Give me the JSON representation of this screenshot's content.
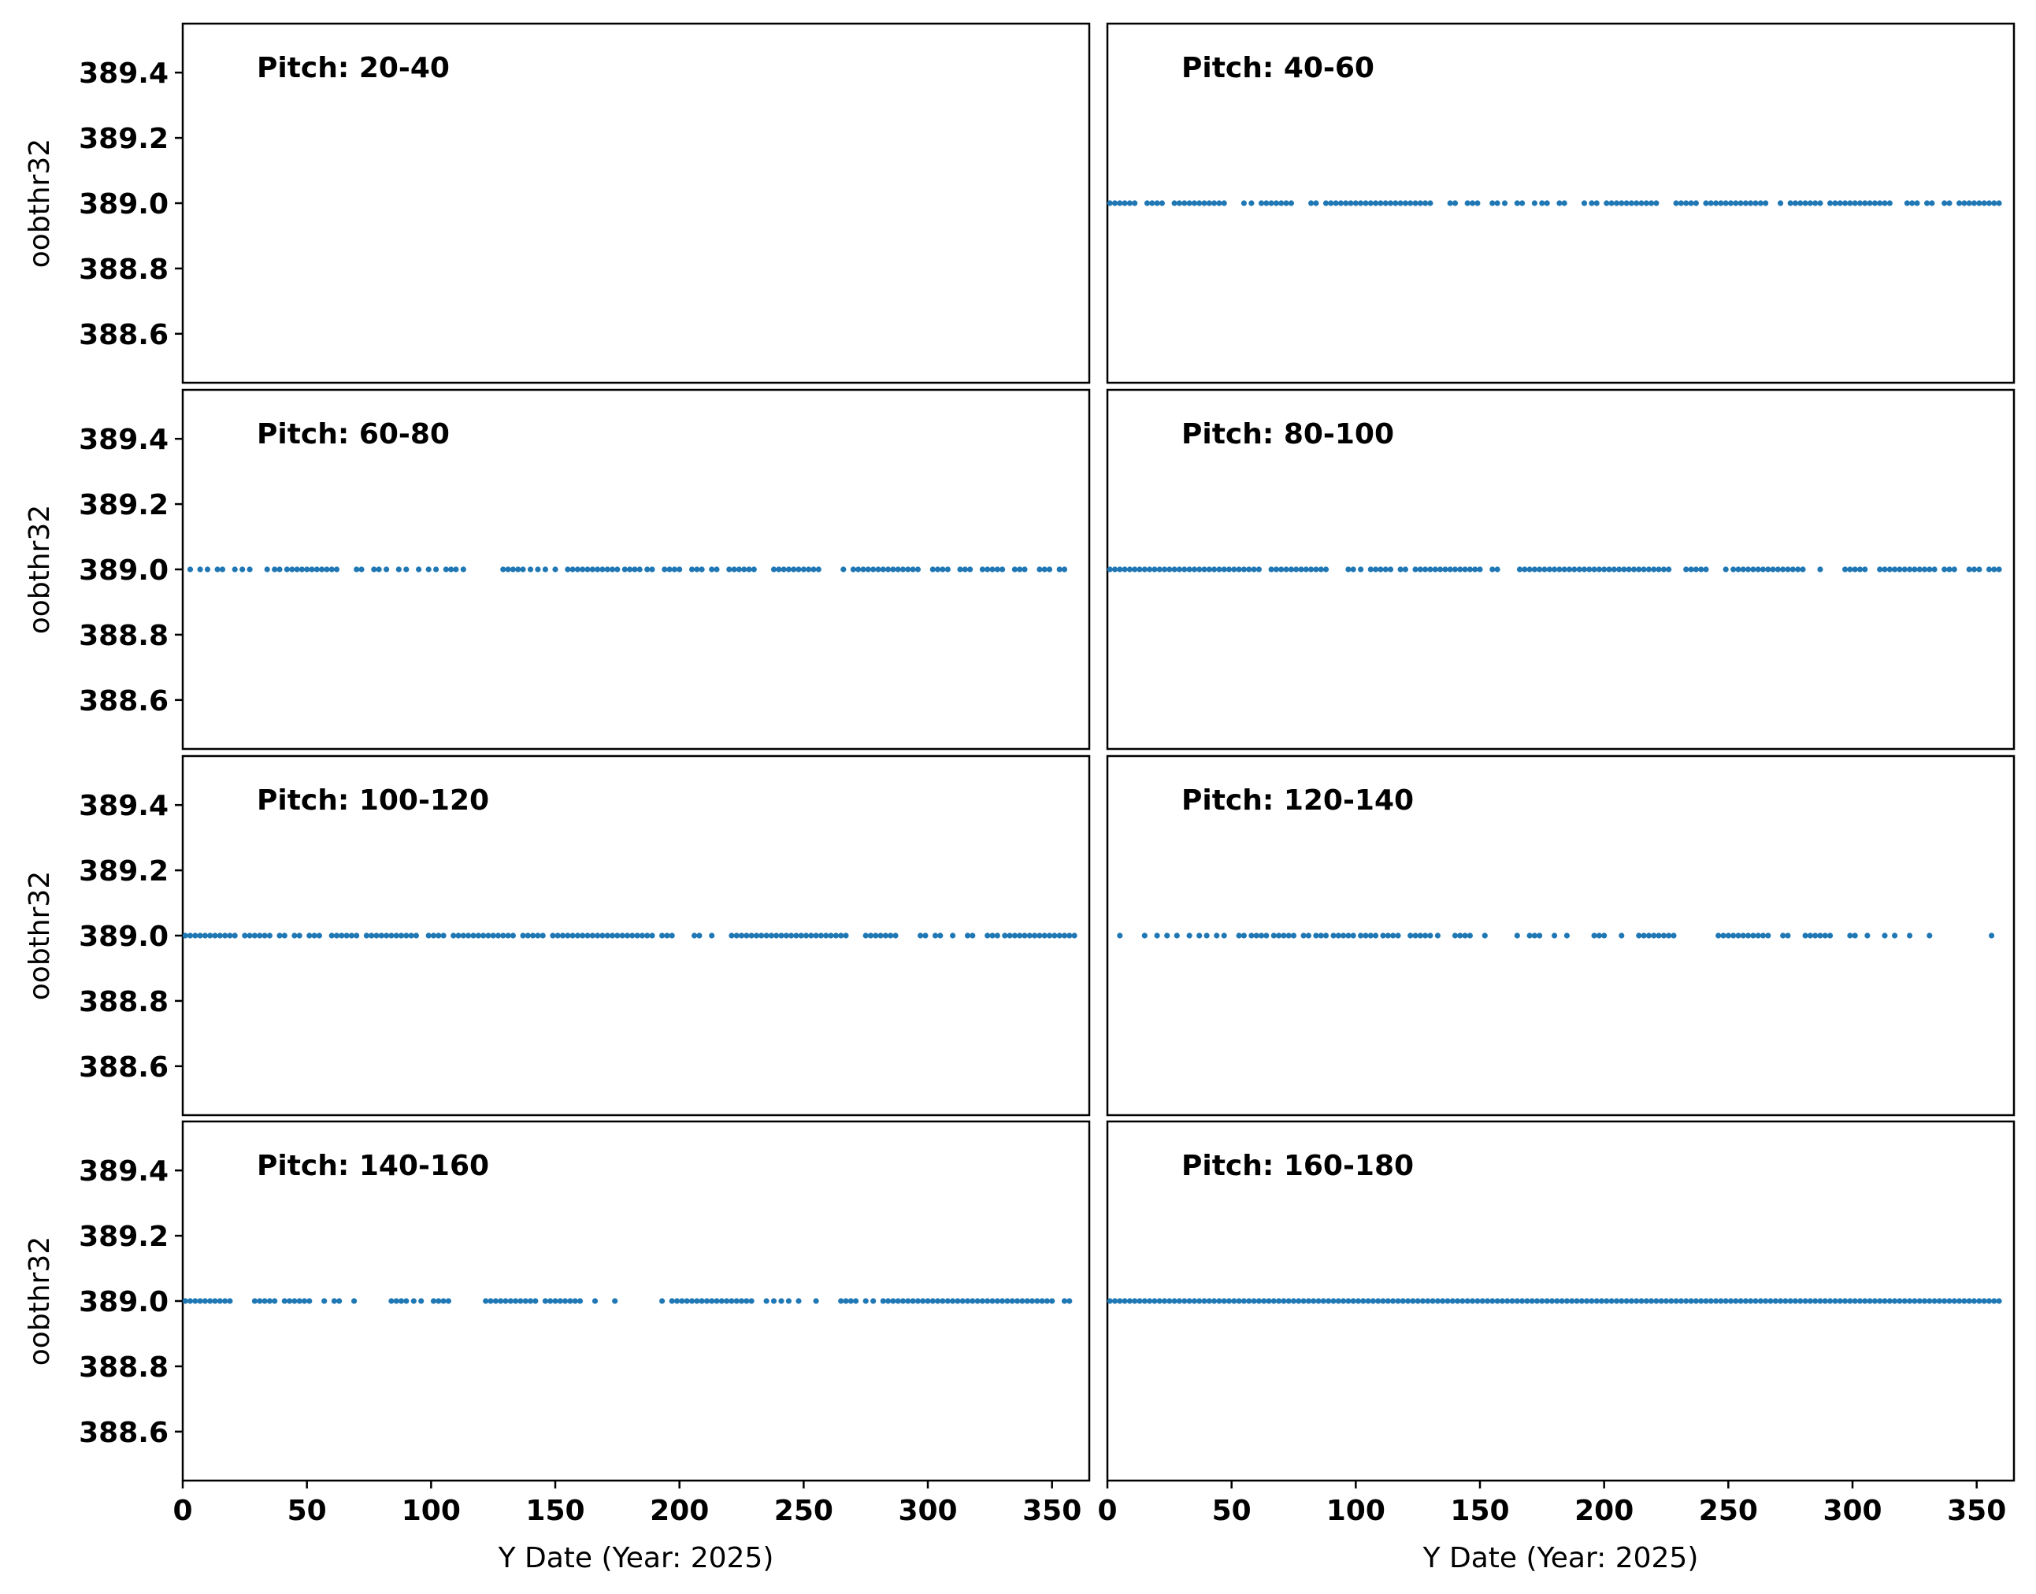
{
  "chart_data": {
    "type": "scatter",
    "layout": "4x2 grid of subplots sharing x and y axes",
    "ylabel": "oobthr32",
    "xlabel": "Y Date (Year: 2025)",
    "xlim": [
      0,
      365
    ],
    "ylim": [
      388.45,
      389.55
    ],
    "xticks": [
      0,
      50,
      100,
      150,
      200,
      250,
      300,
      350
    ],
    "yticks": [
      388.6,
      388.8,
      389.0,
      389.2,
      389.4
    ],
    "ytick_labels": [
      "388.6",
      "388.8",
      "389.0",
      "389.2",
      "389.4"
    ],
    "marker_color": "#1f77b4",
    "y_value": 389.0,
    "panels": [
      {
        "title": "Pitch: 20-40",
        "x": []
      },
      {
        "title": "Pitch: 40-60",
        "x": [
          1,
          3,
          5,
          7,
          9,
          11,
          16,
          18,
          20,
          22,
          27,
          29,
          31,
          33,
          35,
          37,
          39,
          41,
          43,
          45,
          47,
          55,
          58,
          62,
          64,
          66,
          68,
          70,
          72,
          74,
          82,
          84,
          88,
          90,
          92,
          94,
          96,
          98,
          100,
          102,
          104,
          106,
          108,
          110,
          112,
          114,
          116,
          118,
          120,
          122,
          124,
          126,
          128,
          130,
          138,
          140,
          145,
          147,
          149,
          155,
          157,
          160,
          165,
          167,
          172,
          175,
          177,
          182,
          184,
          192,
          195,
          197,
          201,
          203,
          205,
          207,
          209,
          211,
          213,
          215,
          217,
          219,
          221,
          229,
          231,
          233,
          235,
          237,
          241,
          243,
          245,
          247,
          249,
          251,
          253,
          255,
          257,
          259,
          261,
          263,
          265,
          271,
          275,
          277,
          279,
          281,
          283,
          285,
          287,
          291,
          293,
          295,
          297,
          299,
          301,
          303,
          305,
          307,
          309,
          311,
          313,
          315,
          322,
          324,
          326,
          330,
          332,
          337,
          339,
          343,
          345,
          347,
          349,
          351,
          353,
          355,
          357,
          359
        ]
      },
      {
        "title": "Pitch: 60-80",
        "x": [
          3,
          7,
          10,
          14,
          16,
          21,
          24,
          27,
          34,
          37,
          39,
          42,
          44,
          46,
          48,
          50,
          52,
          54,
          56,
          58,
          60,
          62,
          70,
          72,
          77,
          79,
          82,
          87,
          90,
          95,
          99,
          102,
          106,
          108,
          110,
          113,
          129,
          131,
          133,
          135,
          137,
          140,
          143,
          146,
          150,
          155,
          157,
          159,
          161,
          163,
          165,
          167,
          169,
          171,
          173,
          175,
          178,
          180,
          182,
          184,
          187,
          189,
          194,
          196,
          198,
          200,
          205,
          207,
          209,
          213,
          215,
          220,
          222,
          224,
          226,
          228,
          230,
          238,
          240,
          242,
          244,
          246,
          248,
          250,
          252,
          254,
          256,
          266,
          270,
          272,
          274,
          276,
          278,
          280,
          282,
          284,
          286,
          288,
          290,
          292,
          294,
          296,
          302,
          304,
          306,
          308,
          313,
          315,
          317,
          322,
          324,
          326,
          328,
          330,
          335,
          337,
          339,
          345,
          347,
          349,
          353,
          355
        ]
      },
      {
        "title": "Pitch: 80-100",
        "x": [
          1,
          3,
          5,
          7,
          9,
          11,
          13,
          15,
          17,
          19,
          21,
          23,
          25,
          27,
          29,
          31,
          33,
          35,
          37,
          39,
          41,
          43,
          45,
          47,
          49,
          51,
          53,
          55,
          57,
          59,
          61,
          66,
          68,
          70,
          72,
          74,
          76,
          78,
          80,
          82,
          84,
          86,
          88,
          97,
          99,
          102,
          106,
          108,
          110,
          112,
          114,
          118,
          120,
          124,
          126,
          128,
          130,
          132,
          134,
          136,
          138,
          140,
          142,
          144,
          146,
          148,
          150,
          155,
          157,
          166,
          168,
          170,
          172,
          174,
          176,
          178,
          180,
          182,
          184,
          186,
          188,
          190,
          192,
          194,
          196,
          198,
          200,
          202,
          204,
          206,
          208,
          210,
          212,
          214,
          216,
          218,
          220,
          222,
          224,
          226,
          233,
          235,
          237,
          239,
          241,
          249,
          252,
          254,
          256,
          258,
          260,
          262,
          264,
          266,
          268,
          270,
          272,
          274,
          276,
          278,
          280,
          287,
          297,
          299,
          301,
          303,
          305,
          311,
          313,
          315,
          317,
          319,
          321,
          323,
          325,
          327,
          329,
          331,
          333,
          337,
          339,
          341,
          347,
          349,
          351,
          355,
          357,
          359
        ]
      },
      {
        "title": "Pitch: 100-120",
        "x": [
          1,
          3,
          5,
          7,
          9,
          11,
          13,
          15,
          17,
          19,
          21,
          25,
          27,
          29,
          31,
          33,
          35,
          39,
          41,
          45,
          47,
          51,
          53,
          55,
          60,
          62,
          64,
          66,
          68,
          70,
          74,
          76,
          78,
          80,
          82,
          84,
          86,
          88,
          90,
          92,
          94,
          99,
          101,
          103,
          105,
          109,
          111,
          113,
          115,
          117,
          119,
          121,
          123,
          125,
          127,
          129,
          131,
          133,
          137,
          139,
          141,
          143,
          145,
          149,
          151,
          153,
          155,
          157,
          159,
          161,
          163,
          165,
          167,
          169,
          171,
          173,
          175,
          177,
          179,
          181,
          183,
          185,
          187,
          189,
          193,
          195,
          197,
          206,
          208,
          213,
          221,
          223,
          225,
          227,
          229,
          231,
          233,
          235,
          237,
          239,
          241,
          243,
          245,
          247,
          249,
          251,
          253,
          255,
          257,
          259,
          261,
          263,
          265,
          267,
          275,
          277,
          279,
          281,
          283,
          285,
          287,
          297,
          299,
          303,
          305,
          310,
          316,
          318,
          324,
          326,
          328,
          331,
          333,
          335,
          337,
          339,
          341,
          343,
          345,
          347,
          349,
          351,
          353,
          355,
          357,
          359
        ]
      },
      {
        "title": "Pitch: 120-140",
        "x": [
          5,
          15,
          20,
          24,
          28,
          33,
          37,
          40,
          44,
          47,
          53,
          55,
          58,
          60,
          62,
          64,
          67,
          69,
          71,
          73,
          75,
          79,
          81,
          84,
          86,
          88,
          91,
          93,
          95,
          97,
          99,
          102,
          104,
          106,
          108,
          111,
          113,
          115,
          117,
          122,
          124,
          126,
          128,
          130,
          133,
          140,
          142,
          144,
          146,
          152,
          165,
          170,
          172,
          174,
          180,
          185,
          196,
          198,
          200,
          207,
          214,
          216,
          218,
          220,
          222,
          224,
          226,
          228,
          246,
          248,
          250,
          252,
          254,
          256,
          258,
          260,
          262,
          264,
          266,
          272,
          274,
          281,
          283,
          285,
          287,
          289,
          291,
          299,
          301,
          306,
          313,
          317,
          323,
          331,
          356
        ]
      },
      {
        "title": "Pitch: 140-160",
        "x": [
          1,
          3,
          5,
          7,
          9,
          11,
          13,
          15,
          17,
          19,
          29,
          31,
          33,
          35,
          37,
          41,
          43,
          45,
          47,
          49,
          51,
          57,
          61,
          63,
          69,
          84,
          86,
          88,
          90,
          93,
          96,
          101,
          103,
          105,
          107,
          122,
          124,
          126,
          128,
          130,
          132,
          134,
          136,
          138,
          140,
          142,
          146,
          148,
          150,
          152,
          154,
          156,
          158,
          160,
          166,
          174,
          193,
          197,
          199,
          201,
          203,
          205,
          207,
          209,
          211,
          213,
          215,
          217,
          219,
          221,
          223,
          225,
          227,
          229,
          235,
          238,
          241,
          244,
          248,
          255,
          265,
          267,
          269,
          271,
          275,
          278,
          282,
          284,
          286,
          288,
          290,
          292,
          294,
          296,
          298,
          300,
          302,
          304,
          306,
          308,
          310,
          312,
          314,
          316,
          318,
          320,
          322,
          324,
          326,
          328,
          330,
          332,
          334,
          336,
          338,
          340,
          342,
          344,
          346,
          348,
          350,
          355,
          357
        ]
      },
      {
        "title": "Pitch: 160-180",
        "x": [
          1,
          3,
          5,
          7,
          9,
          11,
          13,
          15,
          17,
          19,
          21,
          23,
          25,
          27,
          29,
          31,
          33,
          35,
          37,
          39,
          41,
          43,
          45,
          47,
          49,
          51,
          53,
          55,
          57,
          59,
          61,
          63,
          65,
          67,
          69,
          71,
          73,
          75,
          77,
          79,
          81,
          83,
          85,
          87,
          89,
          91,
          93,
          95,
          97,
          99,
          101,
          103,
          105,
          107,
          109,
          111,
          113,
          115,
          117,
          119,
          121,
          123,
          125,
          127,
          129,
          131,
          133,
          135,
          137,
          139,
          141,
          143,
          145,
          147,
          149,
          151,
          153,
          155,
          157,
          159,
          161,
          163,
          165,
          167,
          169,
          171,
          173,
          175,
          177,
          179,
          181,
          183,
          185,
          187,
          189,
          191,
          193,
          195,
          197,
          199,
          201,
          203,
          205,
          207,
          209,
          211,
          213,
          215,
          217,
          219,
          221,
          223,
          225,
          227,
          229,
          231,
          233,
          235,
          237,
          239,
          241,
          243,
          245,
          247,
          249,
          251,
          253,
          255,
          257,
          259,
          261,
          263,
          265,
          267,
          269,
          271,
          273,
          275,
          277,
          279,
          281,
          283,
          285,
          287,
          289,
          291,
          293,
          295,
          297,
          299,
          301,
          303,
          305,
          307,
          309,
          311,
          313,
          315,
          317,
          319,
          321,
          323,
          325,
          327,
          329,
          331,
          333,
          335,
          337,
          339,
          341,
          343,
          345,
          347,
          349,
          351,
          353,
          355,
          357,
          359
        ]
      }
    ]
  }
}
